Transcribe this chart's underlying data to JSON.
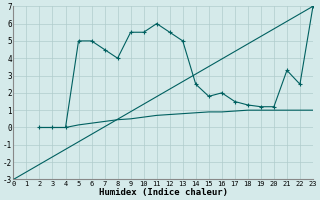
{
  "xlabel": "Humidex (Indice chaleur)",
  "xlim": [
    0,
    23
  ],
  "ylim": [
    -3,
    7
  ],
  "xticks": [
    0,
    1,
    2,
    3,
    4,
    5,
    6,
    7,
    8,
    9,
    10,
    11,
    12,
    13,
    14,
    15,
    16,
    17,
    18,
    19,
    20,
    21,
    22,
    23
  ],
  "yticks": [
    -3,
    -2,
    -1,
    0,
    1,
    2,
    3,
    4,
    5,
    6,
    7
  ],
  "bg_color": "#d5eaea",
  "line_color": "#006060",
  "grid_color": "#b0cccc",
  "line1_x": [
    0,
    23
  ],
  "line1_y": [
    -3,
    7
  ],
  "line2_x": [
    2,
    3,
    4,
    5,
    6,
    7,
    8,
    9,
    10,
    11,
    12,
    13,
    14,
    15,
    16,
    17,
    18,
    19,
    20,
    21,
    22,
    23
  ],
  "line2_y": [
    0,
    0,
    0,
    0.15,
    0.25,
    0.35,
    0.45,
    0.5,
    0.6,
    0.7,
    0.75,
    0.8,
    0.85,
    0.9,
    0.9,
    0.95,
    1.0,
    1.0,
    1.0,
    1.0,
    1.0,
    1.0
  ],
  "line3_x": [
    2,
    3,
    4,
    5,
    6,
    7,
    8,
    9,
    10,
    11,
    12,
    13,
    14,
    15,
    16,
    17,
    18,
    19,
    20,
    21,
    22,
    23
  ],
  "line3_y": [
    0,
    0,
    0,
    5,
    5,
    4.5,
    4,
    5.5,
    5.5,
    6,
    5.5,
    5,
    2.5,
    1.8,
    2.0,
    1.5,
    1.3,
    1.2,
    1.2,
    3.3,
    2.5,
    7
  ]
}
